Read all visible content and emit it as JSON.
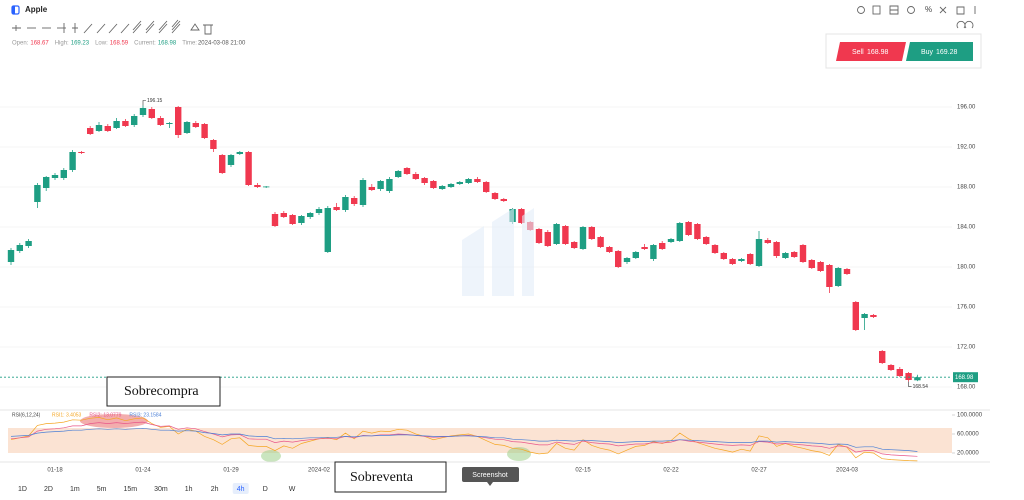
{
  "header": {
    "title": "Apple",
    "ohlc": [
      {
        "label": "Open:",
        "value": 168.67,
        "color": "#f0384f"
      },
      {
        "label": "High:",
        "value": 169.23,
        "color": "#1e9e83"
      },
      {
        "label": "Low:",
        "value": 168.59,
        "color": "#f0384f"
      },
      {
        "label": "Current:",
        "value": 168.98,
        "color": "#1e9e83"
      }
    ],
    "time_label": "Time:",
    "time": "2024-03-08 21:00"
  },
  "trade": {
    "sell": {
      "label": "Sell",
      "price": 168.98,
      "color": "#f0384f"
    },
    "buy": {
      "label": "Buy",
      "price": 169.28,
      "color": "#1e9e83"
    }
  },
  "annotations": {
    "overbought": "Sobrecompra",
    "oversold": "Sobreventa",
    "tooltip": "Screenshot"
  },
  "timeframes": {
    "items": [
      "1D",
      "2D",
      "1m",
      "5m",
      "15m",
      "30m",
      "1h",
      "2h",
      "4h",
      "D",
      "W"
    ],
    "active": "4h"
  },
  "chart_data": [
    {
      "type": "candlestick",
      "up_color": "#1e9e83",
      "down_color": "#f0384f",
      "grid": true,
      "ylim": [
        165.9,
        201.2
      ],
      "yticks": [
        {
          "value": 196,
          "label": "196.00"
        },
        {
          "value": 192,
          "label": "192.00"
        },
        {
          "value": 188,
          "label": "188.00"
        },
        {
          "value": 184,
          "label": "184.00"
        },
        {
          "value": 180,
          "label": "180.00"
        },
        {
          "value": 176,
          "label": "176.00"
        },
        {
          "value": 172,
          "label": "172.00"
        },
        {
          "value": 168,
          "label": "168.00"
        }
      ],
      "current_price": 168.98,
      "max_index": 15,
      "min_index": 102,
      "categories": [
        null,
        null,
        null,
        null,
        null,
        "01-18",
        null,
        null,
        null,
        null,
        null,
        null,
        null,
        null,
        null,
        "01-24",
        null,
        null,
        null,
        null,
        null,
        null,
        null,
        null,
        null,
        "01-29",
        null,
        null,
        null,
        null,
        null,
        null,
        null,
        null,
        null,
        "2024-02",
        null,
        null,
        null,
        null,
        null,
        null,
        null,
        null,
        null,
        null,
        null,
        null,
        null,
        null,
        null,
        null,
        null,
        null,
        null,
        null,
        null,
        null,
        null,
        null,
        null,
        null,
        null,
        null,
        null,
        "02-15",
        null,
        null,
        null,
        null,
        null,
        null,
        null,
        null,
        null,
        "02-22",
        null,
        null,
        null,
        null,
        null,
        null,
        null,
        null,
        null,
        "02-27",
        null,
        null,
        null,
        null,
        null,
        null,
        null,
        null,
        null,
        "2024-03",
        null,
        null,
        null,
        null,
        null,
        null,
        null,
        null
      ],
      "ohlc": [
        [
          180.5,
          181.9,
          180.2,
          181.7
        ],
        [
          181.6,
          182.4,
          181.4,
          182.2
        ],
        [
          182.1,
          182.8,
          181.9,
          182.6
        ],
        [
          186.5,
          188.4,
          185.9,
          188.2
        ],
        [
          187.9,
          189.1,
          187.6,
          189.0
        ],
        [
          188.9,
          189.4,
          188.7,
          189.2
        ],
        [
          188.9,
          189.9,
          188.7,
          189.7
        ],
        [
          189.7,
          191.7,
          189.5,
          191.5
        ],
        [
          191.5,
          191.6,
          191.3,
          191.4
        ],
        [
          193.9,
          194.1,
          193.2,
          193.3
        ],
        [
          193.6,
          194.5,
          193.5,
          194.2
        ],
        [
          194.1,
          194.3,
          193.5,
          193.6
        ],
        [
          193.9,
          194.9,
          193.8,
          194.6
        ],
        [
          194.6,
          194.8,
          194.0,
          194.1
        ],
        [
          194.2,
          195.3,
          194.0,
          195.1
        ],
        [
          195.2,
          196.15,
          195.0,
          195.9
        ],
        [
          195.8,
          196.0,
          194.8,
          194.9
        ],
        [
          194.9,
          195.1,
          194.1,
          194.2
        ],
        [
          194.3,
          194.5,
          193.9,
          194.4
        ],
        [
          196.0,
          196.1,
          192.9,
          193.2
        ],
        [
          193.4,
          194.6,
          193.3,
          194.5
        ],
        [
          194.4,
          194.6,
          193.9,
          194.0
        ],
        [
          194.3,
          194.4,
          192.8,
          192.9
        ],
        [
          192.7,
          192.8,
          191.5,
          191.8
        ],
        [
          191.2,
          191.3,
          189.3,
          189.4
        ],
        [
          190.2,
          191.3,
          190.0,
          191.2
        ],
        [
          191.3,
          191.6,
          191.2,
          191.5
        ],
        [
          191.5,
          191.6,
          188.1,
          188.2
        ],
        [
          188.2,
          188.4,
          187.9,
          188.0
        ],
        [
          188.0,
          188.1,
          187.9,
          188.05
        ],
        [
          185.3,
          185.5,
          184.0,
          184.1
        ],
        [
          185.4,
          185.6,
          184.9,
          185.0
        ],
        [
          185.2,
          185.3,
          184.2,
          184.3
        ],
        [
          184.4,
          185.2,
          184.2,
          185.1
        ],
        [
          185.0,
          185.5,
          184.8,
          185.4
        ],
        [
          185.4,
          186.0,
          185.2,
          185.8
        ],
        [
          181.5,
          186.1,
          181.4,
          185.9
        ],
        [
          186.0,
          186.4,
          185.6,
          185.7
        ],
        [
          185.7,
          187.2,
          185.5,
          187.0
        ],
        [
          186.9,
          187.1,
          186.1,
          186.3
        ],
        [
          186.2,
          188.9,
          186.0,
          188.7
        ],
        [
          188.0,
          188.3,
          187.6,
          187.7
        ],
        [
          187.8,
          188.7,
          187.6,
          188.6
        ],
        [
          187.6,
          189.0,
          187.4,
          188.8
        ],
        [
          189.0,
          189.7,
          188.9,
          189.6
        ],
        [
          189.9,
          190.0,
          189.2,
          189.3
        ],
        [
          189.3,
          189.5,
          188.7,
          188.8
        ],
        [
          188.9,
          189.0,
          188.2,
          188.4
        ],
        [
          188.6,
          188.7,
          187.8,
          187.9
        ],
        [
          187.8,
          188.2,
          187.7,
          188.1
        ],
        [
          188.0,
          188.4,
          187.9,
          188.3
        ],
        [
          188.3,
          188.6,
          188.2,
          188.5
        ],
        [
          188.4,
          188.9,
          188.3,
          188.8
        ],
        [
          188.8,
          189.0,
          188.4,
          188.5
        ],
        [
          188.5,
          188.6,
          187.4,
          187.5
        ],
        [
          187.4,
          187.5,
          186.7,
          186.8
        ],
        [
          186.8,
          186.9,
          186.5,
          186.6
        ],
        [
          184.5,
          185.9,
          184.3,
          185.8
        ],
        [
          185.8,
          185.9,
          184.3,
          184.4
        ],
        [
          184.5,
          184.6,
          183.6,
          183.7
        ],
        [
          183.8,
          183.9,
          182.3,
          182.4
        ],
        [
          183.5,
          183.7,
          182.0,
          182.1
        ],
        [
          182.3,
          184.4,
          182.2,
          184.3
        ],
        [
          184.1,
          184.2,
          182.2,
          182.3
        ],
        [
          182.5,
          182.6,
          181.8,
          181.9
        ],
        [
          181.8,
          184.1,
          181.7,
          184.0
        ],
        [
          184.0,
          184.1,
          182.7,
          182.8
        ],
        [
          183.0,
          183.1,
          181.9,
          182.0
        ],
        [
          182.0,
          182.1,
          181.4,
          181.5
        ],
        [
          181.6,
          181.7,
          179.9,
          180.0
        ],
        [
          180.5,
          181.0,
          180.3,
          180.9
        ],
        [
          180.9,
          181.6,
          180.8,
          181.5
        ],
        [
          182.0,
          182.3,
          181.7,
          181.8
        ],
        [
          180.8,
          182.3,
          180.6,
          182.2
        ],
        [
          182.4,
          182.6,
          181.7,
          181.8
        ],
        [
          182.5,
          182.9,
          182.4,
          182.8
        ],
        [
          182.6,
          184.5,
          182.5,
          184.4
        ],
        [
          184.5,
          184.6,
          183.1,
          183.2
        ],
        [
          184.3,
          184.4,
          182.7,
          182.8
        ],
        [
          183.0,
          183.1,
          182.2,
          182.3
        ],
        [
          182.2,
          182.3,
          181.3,
          181.4
        ],
        [
          181.4,
          181.5,
          180.7,
          180.8
        ],
        [
          180.8,
          180.9,
          180.2,
          180.3
        ],
        [
          180.6,
          180.9,
          180.5,
          180.8
        ],
        [
          181.3,
          181.4,
          180.2,
          180.3
        ],
        [
          180.1,
          183.6,
          180.0,
          182.8
        ],
        [
          182.7,
          182.9,
          182.3,
          182.4
        ],
        [
          182.5,
          182.6,
          180.9,
          181.1
        ],
        [
          180.9,
          181.5,
          180.8,
          181.4
        ],
        [
          181.5,
          181.6,
          180.9,
          181.0
        ],
        [
          182.2,
          182.3,
          180.4,
          180.5
        ],
        [
          180.7,
          180.8,
          179.8,
          179.9
        ],
        [
          180.5,
          180.6,
          179.5,
          179.6
        ],
        [
          180.2,
          180.3,
          177.4,
          178.0
        ],
        [
          178.1,
          180.0,
          178.0,
          179.9
        ],
        [
          179.8,
          179.9,
          179.2,
          179.3
        ],
        [
          176.5,
          176.6,
          173.6,
          173.7
        ],
        [
          174.9,
          175.4,
          173.7,
          175.3
        ],
        [
          175.2,
          175.3,
          174.9,
          175.0
        ],
        [
          171.6,
          171.7,
          170.3,
          170.4
        ],
        [
          170.2,
          170.3,
          169.6,
          169.7
        ],
        [
          169.8,
          170.0,
          169.0,
          169.1
        ],
        [
          169.4,
          169.5,
          168.54,
          168.7
        ],
        [
          168.67,
          169.23,
          168.59,
          168.98
        ]
      ]
    },
    {
      "type": "line",
      "title": "RSI(6,12,24)",
      "ylim": [
        0,
        100
      ],
      "yticks": [
        {
          "value": 100,
          "label": "100.0000"
        },
        {
          "value": 60,
          "label": "60.0000"
        },
        {
          "value": 20,
          "label": "20.0000"
        }
      ],
      "series": [
        {
          "name": "RSI1:",
          "color": "#f5a623",
          "values": [
            48,
            52,
            56,
            78,
            82,
            83,
            85,
            90,
            89,
            93,
            95,
            90,
            94,
            88,
            92,
            94,
            82,
            74,
            76,
            60,
            70,
            66,
            55,
            48,
            38,
            50,
            52,
            36,
            34,
            34,
            25,
            35,
            30,
            40,
            45,
            50,
            52,
            48,
            62,
            50,
            66,
            62,
            66,
            65,
            70,
            68,
            60,
            55,
            48,
            52,
            56,
            58,
            60,
            55,
            46,
            38,
            36,
            30,
            28,
            22,
            18,
            20,
            40,
            30,
            26,
            48,
            36,
            30,
            26,
            18,
            26,
            34,
            36,
            44,
            40,
            46,
            62,
            50,
            42,
            36,
            30,
            26,
            22,
            28,
            24,
            56,
            52,
            34,
            40,
            34,
            30,
            25,
            22,
            15,
            38,
            32,
            10,
            22,
            20,
            8,
            6,
            5,
            4,
            3.4053
          ]
        },
        {
          "name": "RSI2:",
          "color": "#e8578a",
          "values": [
            50,
            52,
            54,
            66,
            70,
            71,
            73,
            77,
            77,
            82,
            84,
            82,
            84,
            82,
            84,
            85,
            80,
            76,
            77,
            70,
            73,
            71,
            65,
            60,
            54,
            58,
            59,
            50,
            49,
            49,
            42,
            45,
            43,
            46,
            48,
            50,
            51,
            50,
            55,
            52,
            57,
            56,
            58,
            58,
            60,
            59,
            57,
            55,
            53,
            54,
            55,
            56,
            57,
            55,
            52,
            49,
            48,
            44,
            43,
            40,
            37,
            37,
            43,
            40,
            38,
            45,
            42,
            40,
            39,
            35,
            37,
            39,
            39,
            42,
            41,
            43,
            48,
            45,
            43,
            41,
            39,
            37,
            36,
            37,
            36,
            44,
            43,
            39,
            40,
            38,
            37,
            35,
            34,
            30,
            35,
            33,
            22,
            25,
            25,
            18,
            16,
            15,
            14,
            13.0779
          ]
        },
        {
          "name": "RSI3:",
          "color": "#4a7fd6",
          "values": [
            55,
            56,
            57,
            62,
            64,
            65,
            66,
            68,
            68,
            70,
            71,
            70,
            71,
            70,
            71,
            72,
            70,
            68,
            68,
            66,
            67,
            66,
            63,
            61,
            58,
            60,
            60,
            56,
            55,
            55,
            50,
            51,
            50,
            51,
            52,
            52,
            53,
            53,
            55,
            54,
            56,
            56,
            57,
            57,
            58,
            58,
            57,
            56,
            55,
            55,
            55,
            56,
            56,
            55,
            54,
            52,
            52,
            49,
            48,
            47,
            45,
            45,
            47,
            46,
            45,
            47,
            46,
            45,
            44,
            42,
            43,
            44,
            44,
            45,
            45,
            46,
            48,
            47,
            46,
            45,
            44,
            43,
            42,
            42,
            42,
            45,
            45,
            43,
            44,
            43,
            42,
            41,
            40,
            38,
            39,
            38,
            32,
            33,
            33,
            28,
            27,
            26,
            25,
            23.1584
          ]
        }
      ]
    }
  ]
}
